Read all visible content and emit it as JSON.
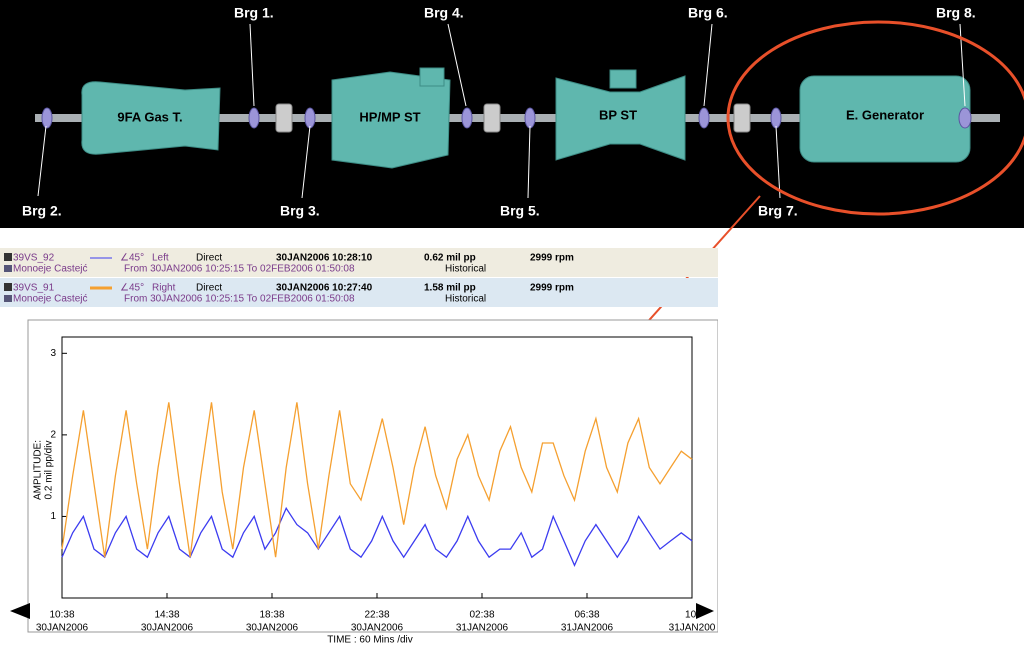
{
  "diagram": {
    "components": [
      "9FA Gas T.",
      "HP/MP ST",
      "BP ST",
      "E. Generator"
    ],
    "bearings": [
      "Brg 1.",
      "Brg 2.",
      "Brg 3.",
      "Brg 4.",
      "Brg 5.",
      "Brg 6.",
      "Brg 7.",
      "Brg 8."
    ]
  },
  "header_rows": [
    {
      "angle": "∠45°",
      "side": "Left",
      "mode": "Direct",
      "timestamp": "30JAN2006 10:28:10",
      "amplitude": "0.62 mil  pp",
      "speed": "2999 rpm",
      "machine": "Monoeje Castejć",
      "range": "From 30JAN2006 10:25:15 To 02FEB2006 01:50:08",
      "source": "Historical"
    },
    {
      "angle": "∠45°",
      "side": "Right",
      "mode": "Direct",
      "timestamp": "30JAN2006 10:27:40",
      "amplitude": "1.58 mil  pp",
      "speed": "2999 rpm",
      "machine": "Monoeje Castejć",
      "range": "From 30JAN2006 10:25:15 To 02FEB2006 01:50:08",
      "source": "Historical"
    }
  ],
  "chart_data": {
    "type": "line",
    "y_label": [
      "AMPLITUDE:",
      "0.2 mil pp/div"
    ],
    "x_label": "TIME : 60 Mins /div",
    "x_tick_labels": [
      {
        "time": "10:38",
        "date": "30JAN2006"
      },
      {
        "time": "14:38",
        "date": "30JAN2006"
      },
      {
        "time": "18:38",
        "date": "30JAN2006"
      },
      {
        "time": "22:38",
        "date": "30JAN2006"
      },
      {
        "time": "02:38",
        "date": "31JAN2006"
      },
      {
        "time": "06:38",
        "date": "31JAN2006"
      },
      {
        "time": "10:",
        "date": "31JAN200"
      }
    ],
    "ylim": [
      0,
      3.2
    ],
    "yticks": [
      1,
      2,
      3
    ],
    "series": [
      {
        "name": "39VS_92",
        "color": "#3c3cf0",
        "values": [
          0.5,
          0.8,
          1.0,
          0.6,
          0.5,
          0.8,
          1.0,
          0.6,
          0.5,
          0.8,
          1.0,
          0.6,
          0.5,
          0.8,
          1.0,
          0.6,
          0.5,
          0.8,
          1.0,
          0.6,
          0.8,
          1.1,
          0.9,
          0.8,
          0.6,
          0.8,
          1.0,
          0.6,
          0.5,
          0.7,
          1.0,
          0.7,
          0.5,
          0.7,
          0.9,
          0.6,
          0.5,
          0.7,
          1.0,
          0.7,
          0.5,
          0.6,
          0.6,
          0.8,
          0.5,
          0.6,
          1.0,
          0.7,
          0.4,
          0.7,
          0.9,
          0.7,
          0.5,
          0.7,
          1.0,
          0.8,
          0.6,
          0.7,
          0.8,
          0.7
        ]
      },
      {
        "name": "39VS_91",
        "color": "#f5a030",
        "values": [
          0.6,
          1.5,
          2.3,
          1.4,
          0.5,
          1.5,
          2.3,
          1.4,
          0.6,
          1.6,
          2.4,
          1.4,
          0.5,
          1.5,
          2.4,
          1.3,
          0.6,
          1.6,
          2.3,
          1.4,
          0.5,
          1.6,
          2.4,
          1.4,
          0.6,
          1.5,
          2.3,
          1.4,
          1.2,
          1.7,
          2.2,
          1.6,
          0.9,
          1.6,
          2.1,
          1.5,
          1.1,
          1.7,
          2.0,
          1.5,
          1.2,
          1.8,
          2.1,
          1.6,
          1.3,
          1.9,
          1.9,
          1.5,
          1.2,
          1.8,
          2.2,
          1.6,
          1.3,
          1.9,
          2.2,
          1.6,
          1.4,
          1.6,
          1.8,
          1.7
        ]
      }
    ]
  }
}
